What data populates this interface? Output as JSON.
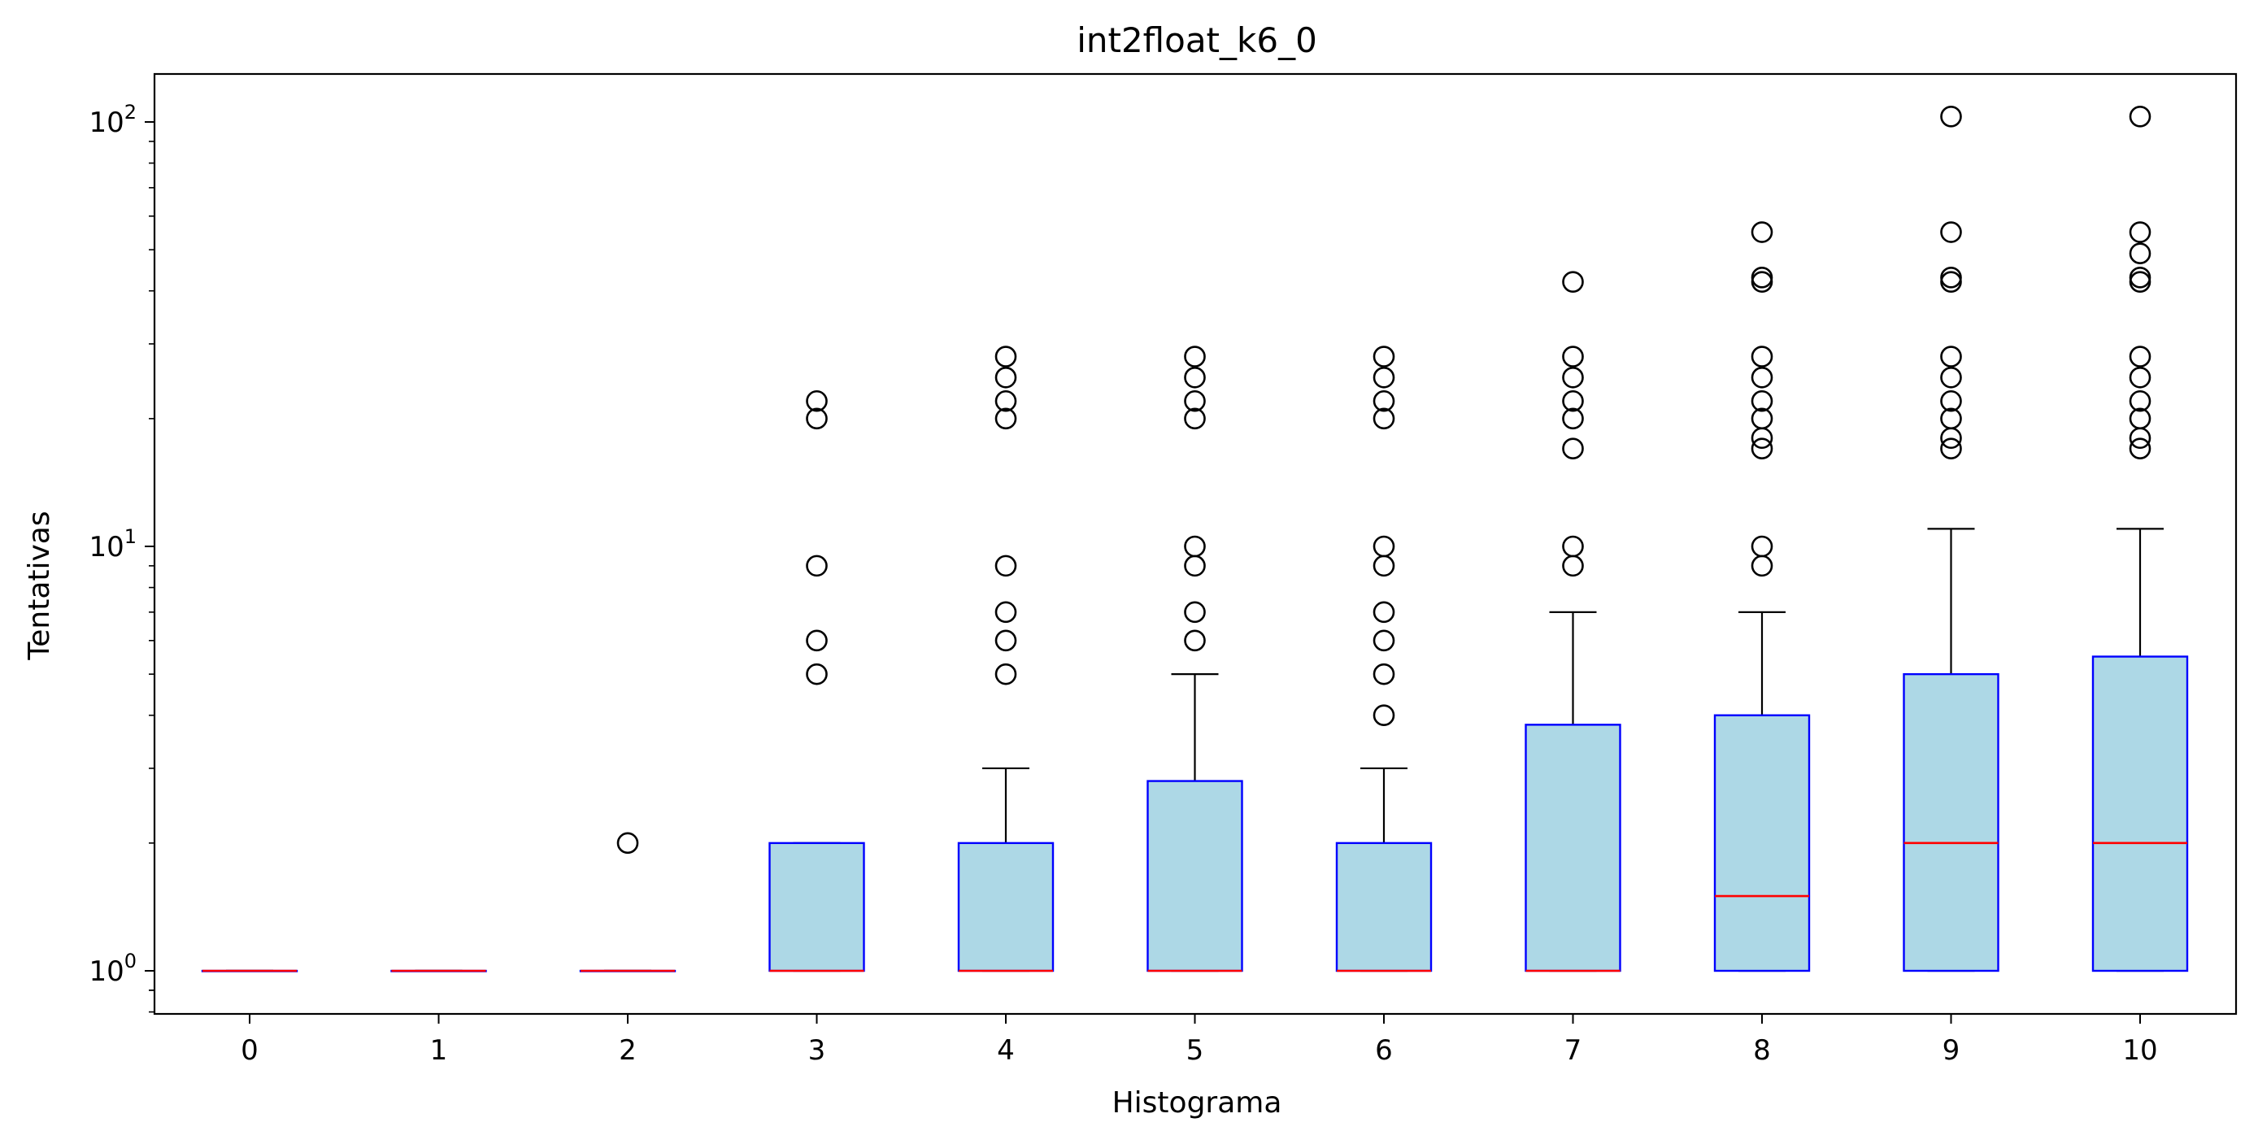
{
  "chart_data": {
    "type": "boxplot",
    "title": "int2float_k6_0",
    "xlabel": "Histograma",
    "ylabel": "Tentativas",
    "yscale": "log",
    "ylim": [
      0.8,
      130
    ],
    "y_ticks": [
      1,
      10,
      100
    ],
    "y_tick_labels": [
      {
        "base": "10",
        "exp": "0"
      },
      {
        "base": "10",
        "exp": "1"
      },
      {
        "base": "10",
        "exp": "2"
      }
    ],
    "categories": [
      "0",
      "1",
      "2",
      "3",
      "4",
      "5",
      "6",
      "7",
      "8",
      "9",
      "10"
    ],
    "boxes": [
      {
        "q1": 1,
        "median": 1,
        "q3": 1,
        "whisker_low": 1,
        "whisker_high": 1,
        "outliers": []
      },
      {
        "q1": 1,
        "median": 1,
        "q3": 1,
        "whisker_low": 1,
        "whisker_high": 1,
        "outliers": []
      },
      {
        "q1": 1,
        "median": 1,
        "q3": 1,
        "whisker_low": 1,
        "whisker_high": 1,
        "outliers": [
          2
        ]
      },
      {
        "q1": 1,
        "median": 1,
        "q3": 2,
        "whisker_low": 1,
        "whisker_high": 2,
        "outliers": [
          5,
          6,
          9,
          20,
          22
        ]
      },
      {
        "q1": 1,
        "median": 1,
        "q3": 2,
        "whisker_low": 1,
        "whisker_high": 3,
        "outliers": [
          5,
          6,
          7,
          9,
          20,
          22,
          25,
          28
        ]
      },
      {
        "q1": 1,
        "median": 1,
        "q3": 2.8,
        "whisker_low": 1,
        "whisker_high": 5,
        "outliers": [
          6,
          7,
          9,
          10,
          20,
          22,
          25,
          28
        ]
      },
      {
        "q1": 1,
        "median": 1,
        "q3": 2,
        "whisker_low": 1,
        "whisker_high": 3,
        "outliers": [
          4,
          5,
          6,
          7,
          9,
          10,
          20,
          22,
          25,
          28
        ]
      },
      {
        "q1": 1,
        "median": 1,
        "q3": 3.8,
        "whisker_low": 1,
        "whisker_high": 7,
        "outliers": [
          9,
          10,
          17,
          20,
          22,
          25,
          28,
          42
        ]
      },
      {
        "q1": 1,
        "median": 1.5,
        "q3": 4,
        "whisker_low": 1,
        "whisker_high": 7,
        "outliers": [
          9,
          10,
          17,
          18,
          20,
          22,
          25,
          28,
          42,
          43,
          55
        ]
      },
      {
        "q1": 1,
        "median": 2,
        "q3": 5,
        "whisker_low": 1,
        "whisker_high": 11,
        "outliers": [
          17,
          18,
          20,
          22,
          25,
          28,
          42,
          43,
          55,
          103
        ]
      },
      {
        "q1": 1,
        "median": 2,
        "q3": 5.5,
        "whisker_low": 1,
        "whisker_high": 11,
        "outliers": [
          17,
          18,
          20,
          22,
          25,
          28,
          42,
          43,
          49,
          55,
          103
        ]
      }
    ],
    "colors": {
      "box_fill": "#add8e6",
      "box_edge": "#0000ff",
      "median": "#ff0000",
      "whisker": "#000000",
      "outlier_edge": "#000000"
    },
    "grid": false,
    "legend": "none"
  }
}
